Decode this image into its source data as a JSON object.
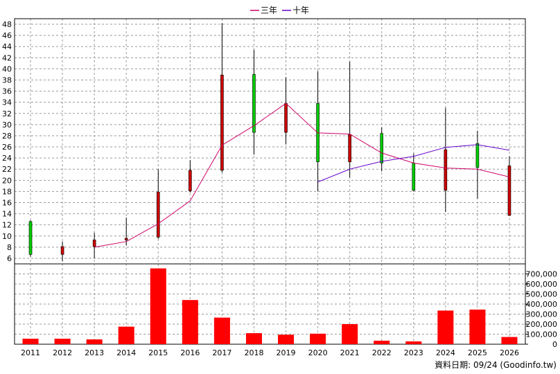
{
  "legend": [
    {
      "label": "三年",
      "color": "#cc0066"
    },
    {
      "label": "十年",
      "color": "#6600cc"
    }
  ],
  "footer": "資料日期: 09/24  (Goodinfo.tw)",
  "colors": {
    "up_candle": "#00cc00",
    "down_candle": "#cc0000",
    "volume_bar": "#ff0000",
    "grid": "#999999"
  },
  "chart_data": [
    {
      "type": "candlestick",
      "title": "",
      "categories": [
        "2011",
        "2012",
        "2013",
        "2014",
        "2015",
        "2016",
        "2017",
        "2018",
        "2019",
        "2020",
        "2021",
        "2022",
        "2023",
        "2024",
        "2025",
        "2026"
      ],
      "ylim": [
        5,
        49
      ],
      "yticks": [
        6,
        8,
        10,
        12,
        14,
        16,
        18,
        20,
        22,
        24,
        26,
        28,
        30,
        32,
        34,
        36,
        38,
        40,
        42,
        44,
        46,
        48
      ],
      "grid": true,
      "candles": [
        {
          "open": 6.7,
          "high": 12.8,
          "low": 6.3,
          "close": 12.6
        },
        {
          "open": 8.1,
          "high": 9.0,
          "low": 5.5,
          "close": 6.7
        },
        {
          "open": 9.3,
          "high": 10.6,
          "low": 6.0,
          "close": 8.1
        },
        {
          "open": 9.6,
          "high": 13.3,
          "low": 8.3,
          "close": 9.3
        },
        {
          "open": 17.9,
          "high": 22.0,
          "low": 9.5,
          "close": 9.8
        },
        {
          "open": 21.8,
          "high": 23.6,
          "low": 17.8,
          "close": 18.1
        },
        {
          "open": 38.9,
          "high": 48.2,
          "low": 21.4,
          "close": 21.8
        },
        {
          "open": 28.6,
          "high": 43.4,
          "low": 24.6,
          "close": 39.0
        },
        {
          "open": 33.8,
          "high": 38.5,
          "low": 26.5,
          "close": 28.6
        },
        {
          "open": 23.3,
          "high": 39.6,
          "low": 18.0,
          "close": 33.8
        },
        {
          "open": 28.2,
          "high": 41.3,
          "low": 20.5,
          "close": 23.3
        },
        {
          "open": 23.1,
          "high": 29.5,
          "low": 21.6,
          "close": 28.4
        },
        {
          "open": 18.2,
          "high": 24.8,
          "low": 18.0,
          "close": 23.1
        },
        {
          "open": 25.5,
          "high": 33.0,
          "low": 14.3,
          "close": 18.2
        },
        {
          "open": 22.3,
          "high": 28.9,
          "low": 16.7,
          "close": 26.6
        },
        {
          "open": 22.6,
          "high": 24.3,
          "low": 13.6,
          "close": 13.7
        }
      ],
      "series": [
        {
          "name": "三年",
          "values": [
            null,
            null,
            8.0,
            9.0,
            12.2,
            16.3,
            26.3,
            29.8,
            33.8,
            28.5,
            28.3,
            24.9,
            23.1,
            22.2,
            22.0,
            20.6
          ]
        },
        {
          "name": "十年",
          "values": [
            null,
            null,
            null,
            null,
            null,
            null,
            null,
            null,
            null,
            19.7,
            22.0,
            23.4,
            24.3,
            25.9,
            26.4,
            25.4
          ]
        }
      ]
    },
    {
      "type": "bar",
      "title": "",
      "categories": [
        "2011",
        "2012",
        "2013",
        "2014",
        "2015",
        "2016",
        "2017",
        "2018",
        "2019",
        "2020",
        "2021",
        "2022",
        "2023",
        "2024",
        "2025",
        "2026"
      ],
      "values": [
        55000,
        55000,
        48000,
        175000,
        755000,
        440000,
        265000,
        110000,
        95000,
        105000,
        200000,
        35000,
        28000,
        335000,
        345000,
        72000
      ],
      "ylim": [
        0,
        800000
      ],
      "yticks": [
        "0",
        "100,000",
        "200,000",
        "300,000",
        "400,000",
        "500,000",
        "600,000",
        "700,000"
      ],
      "grid": true
    }
  ]
}
